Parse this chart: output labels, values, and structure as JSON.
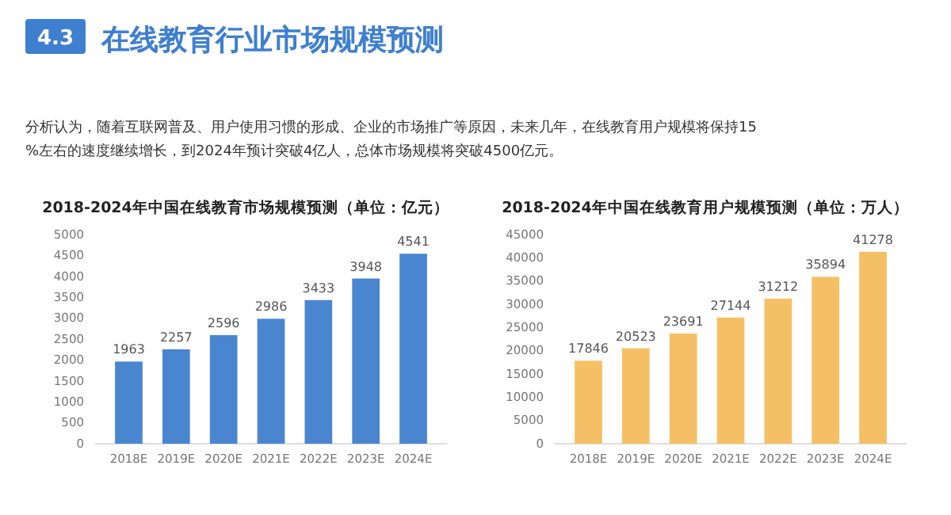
{
  "chart_data": [
    {
      "type": "other",
      "title": "在线教育行业市场规模预测",
      "annotations": [
        "4.3",
        "分析认为，随着互联网普及、用户使用习惯的形成、企业的市场推广等原因，未来几年，在线教育用户规模将保持15%左右的速度继续增长，到2024年预计突破4亿人，总体市场规模将突破4500亿元。"
      ]
    },
    {
      "type": "bar",
      "title": "2018-2024年中国在线教育市场规模预测（单位：亿元）",
      "categories": [
        "2018E",
        "2019E",
        "2020E",
        "2021E",
        "2022E",
        "2023E",
        "2024E"
      ],
      "values": [
        1963,
        2257,
        2596,
        2986,
        3433,
        3948,
        4541
      ],
      "color": "#4a86d0",
      "ylim": [
        0,
        5000
      ],
      "yticks": [
        0,
        500,
        1000,
        1500,
        2000,
        2500,
        3000,
        3500,
        4000,
        4500,
        5000
      ],
      "data_labels": true
    },
    {
      "type": "bar",
      "title": "2018-2024年中国在线教育用户规模预测（单位：万人）",
      "categories": [
        "2018E",
        "2019E",
        "2020E",
        "2021E",
        "2022E",
        "2023E",
        "2024E"
      ],
      "values": [
        17846,
        20523,
        23691,
        27144,
        31212,
        35894,
        41278
      ],
      "color": "#f5c065",
      "ylim": [
        0,
        45000
      ],
      "yticks": [
        0,
        5000,
        10000,
        15000,
        20000,
        25000,
        30000,
        35000,
        40000,
        45000
      ],
      "data_labels": true
    }
  ]
}
